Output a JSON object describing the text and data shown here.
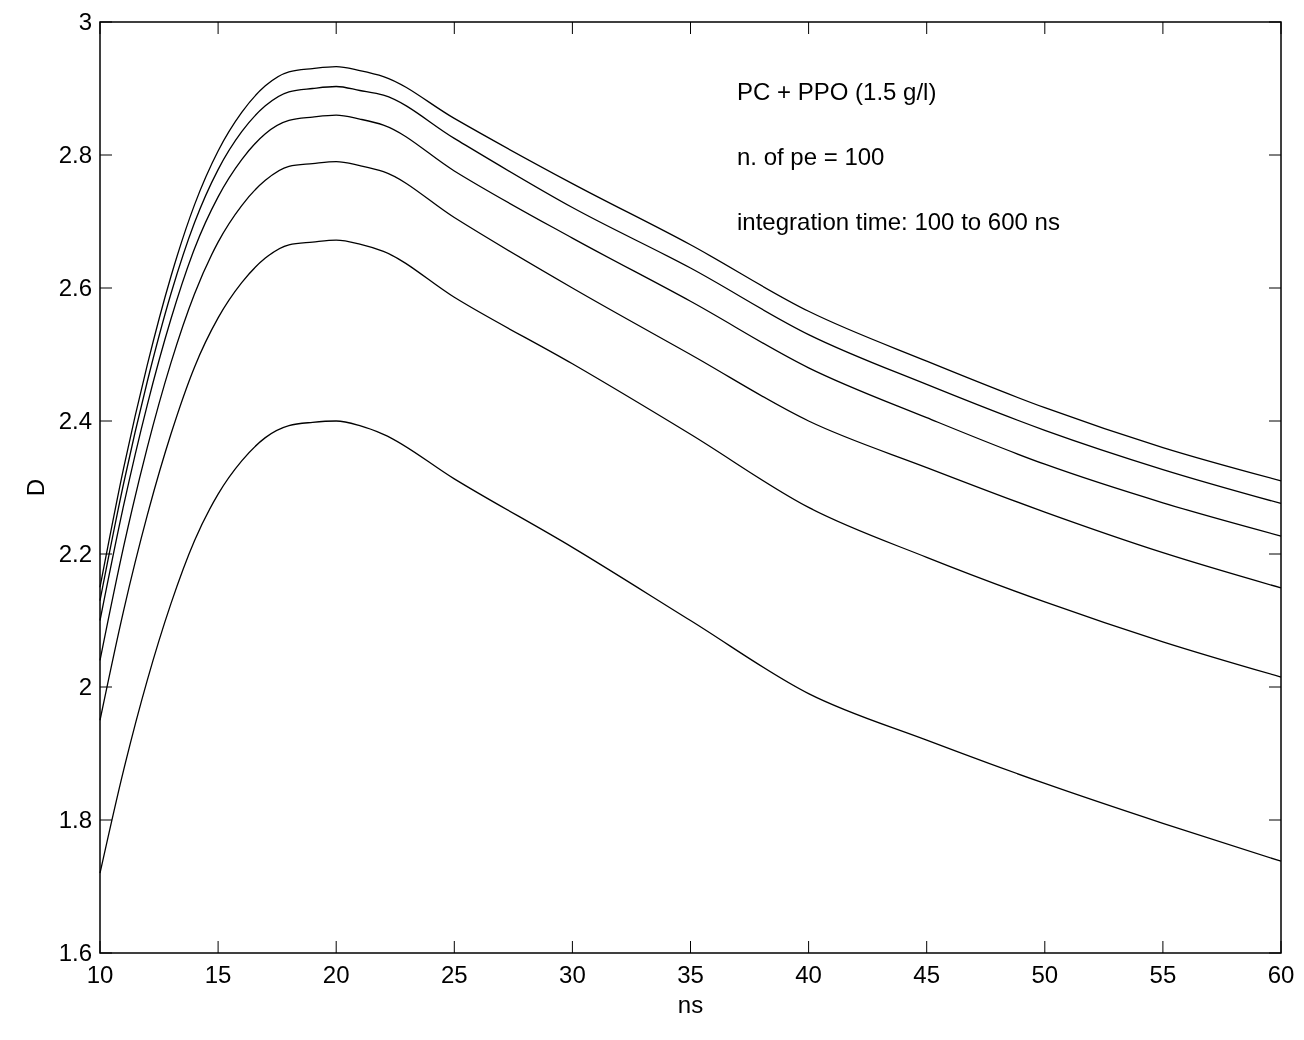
{
  "chart_data": {
    "type": "line",
    "xlabel": "ns",
    "ylabel": "D",
    "annotations": [
      "PC + PPO (1.5 g/l)",
      "n. of pe = 100",
      "integration time: 100 to 600 ns"
    ],
    "x": [
      10,
      11,
      12,
      13,
      14,
      15,
      16,
      17,
      18,
      19,
      20,
      21,
      22,
      25,
      30,
      35,
      40,
      45,
      50,
      55,
      60
    ],
    "series": [
      {
        "color": "#000000",
        "values": [
          2.15,
          2.329,
          2.484,
          2.617,
          2.725,
          2.806,
          2.864,
          2.904,
          2.925,
          2.93,
          2.933,
          2.927,
          2.918,
          2.855,
          2.757,
          2.665,
          2.565,
          2.49,
          2.42,
          2.36,
          2.31
        ]
      },
      {
        "color": "#000000",
        "values": [
          2.13,
          2.306,
          2.459,
          2.591,
          2.698,
          2.778,
          2.835,
          2.874,
          2.895,
          2.9,
          2.903,
          2.897,
          2.89,
          2.825,
          2.721,
          2.63,
          2.53,
          2.455,
          2.386,
          2.327,
          2.276
        ]
      },
      {
        "color": "#000000",
        "values": [
          2.1,
          2.273,
          2.424,
          2.553,
          2.659,
          2.737,
          2.793,
          2.832,
          2.852,
          2.857,
          2.86,
          2.854,
          2.845,
          2.776,
          2.675,
          2.58,
          2.48,
          2.405,
          2.335,
          2.277,
          2.227
        ]
      },
      {
        "color": "#000000",
        "values": [
          2.04,
          2.211,
          2.36,
          2.487,
          2.591,
          2.669,
          2.724,
          2.762,
          2.783,
          2.787,
          2.79,
          2.784,
          2.775,
          2.706,
          2.6,
          2.5,
          2.4,
          2.33,
          2.263,
          2.202,
          2.149
        ]
      },
      {
        "color": "#000000",
        "values": [
          1.95,
          2.115,
          2.258,
          2.38,
          2.481,
          2.555,
          2.608,
          2.645,
          2.665,
          2.669,
          2.672,
          2.666,
          2.655,
          2.586,
          2.486,
          2.38,
          2.27,
          2.195,
          2.128,
          2.068,
          2.015
        ]
      },
      {
        "color": "#000000",
        "values": [
          1.72,
          1.875,
          2.01,
          2.125,
          2.22,
          2.29,
          2.34,
          2.375,
          2.393,
          2.398,
          2.4,
          2.393,
          2.38,
          2.313,
          2.21,
          2.1,
          1.99,
          1.92,
          1.855,
          1.795,
          1.738
        ]
      }
    ],
    "xlim": [
      10,
      60
    ],
    "xticks": [
      10,
      15,
      20,
      25,
      30,
      35,
      40,
      45,
      50,
      55,
      60
    ],
    "ylim": [
      1.6,
      3
    ],
    "yticks": [
      1.6,
      1.8,
      2,
      2.2,
      2.4,
      2.6,
      2.8,
      3
    ],
    "grid": false,
    "marker": "none",
    "line_style": "solid"
  }
}
